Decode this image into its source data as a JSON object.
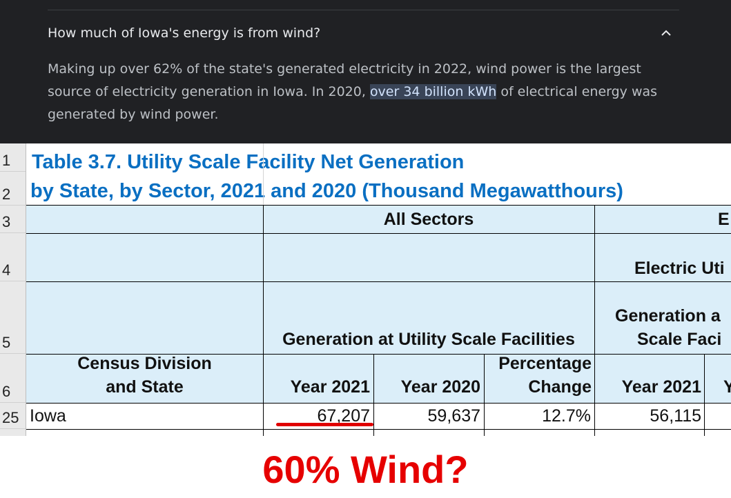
{
  "answer_card": {
    "question": "How much of Iowa's energy is from wind?",
    "answer_before": "Making up over 62% of the state's generated electricity in 2022, wind power is the largest source of electricity generation in Iowa. In 2020, ",
    "answer_highlight": "over 34 billion kWh",
    "answer_after": " of electrical energy was generated by wind power.",
    "expand_icon": "chevron-up-icon"
  },
  "sheet": {
    "title_line1": "Table 3.7. Utility Scale Facility Net Generation",
    "title_line2": "by State, by Sector, 2021 and 2020 (Thousand Megawatthours)",
    "row_numbers": [
      "1",
      "2",
      "3",
      "4",
      "5",
      "6",
      "25"
    ],
    "group_all_sectors": "All Sectors",
    "group_e_partial": "E",
    "electric_utilities_partial": "Electric Uti",
    "generation_header": "Generation at Utility Scale Facilities",
    "generation_partial_line1": "Generation a",
    "generation_partial_line2": "Scale Faci",
    "col_state_line1": "Census Division",
    "col_state_line2": "and State",
    "col_year2021": "Year 2021",
    "col_year2020": "Year 2020",
    "col_pct_line1": "Percentage",
    "col_pct_line2": "Change",
    "col_year2021_b": "Year 2021",
    "col_partial_y": "Y",
    "row_iowa": {
      "state": "Iowa",
      "year2021": "67,207",
      "year2020": "59,637",
      "pct_change": "12.7%",
      "year2021_electric": "56,115"
    }
  },
  "caption": "60% Wind?",
  "colors": {
    "title_blue": "#0a6fc2",
    "header_fill": "#dbeef9",
    "caption_red": "#e60000",
    "dark_bg": "#202124"
  }
}
